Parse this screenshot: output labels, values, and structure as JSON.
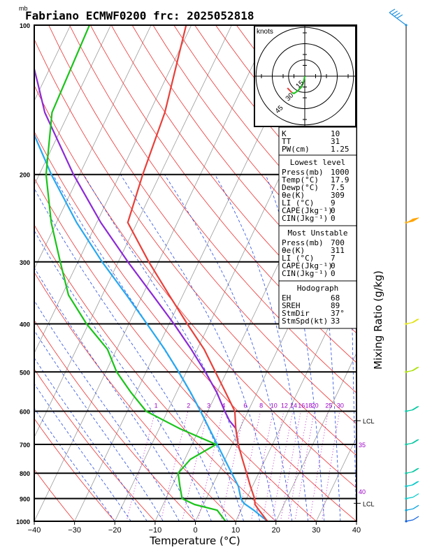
{
  "chart_data": {
    "type": "line",
    "title": "Fabriano ECMWF0200 frc: 2025052818",
    "pressure_unit_label": "mb",
    "xlabel": "Temperature (°C)",
    "right_label": "Mixing Ratio (g/kg)",
    "x_ticks": [
      "−40",
      "−30",
      "−20",
      "−10",
      "0",
      "10",
      "20",
      "30",
      "40"
    ],
    "x_tick_values": [
      -40,
      -30,
      -20,
      -10,
      0,
      10,
      20,
      30,
      40
    ],
    "p_ticks": [
      "100",
      "200",
      "300",
      "400",
      "500",
      "600",
      "700",
      "800",
      "900",
      "1000"
    ],
    "p_tick_values": [
      100,
      200,
      300,
      400,
      500,
      600,
      700,
      800,
      900,
      1000
    ],
    "xlim": [
      -40,
      40
    ],
    "plim": [
      1000,
      100
    ],
    "mixing_ratio_labels": [
      "1",
      "2",
      "3",
      "4",
      "6",
      "8",
      "10",
      "12",
      "14",
      "16",
      "18",
      "20",
      "25",
      "30"
    ],
    "mixing_ratio_values": [
      1,
      2,
      3,
      4,
      6,
      8,
      10,
      12,
      14,
      16,
      18,
      20,
      25,
      30
    ],
    "theta_e_labels": [
      "35",
      "40"
    ],
    "lcl_labels": [
      "LCL",
      "LCL"
    ],
    "lcl_pressures": [
      627,
      920
    ],
    "series": [
      {
        "name": "Temperature",
        "color": "#e8403a",
        "p": [
          1000,
          950,
          925,
          900,
          850,
          800,
          750,
          700,
          650,
          600,
          550,
          500,
          450,
          400,
          350,
          300,
          250,
          200,
          150,
          100
        ],
        "t": [
          17.9,
          14.5,
          12.8,
          12.0,
          9.5,
          7.0,
          4.3,
          1.5,
          -1.0,
          -3.3,
          -7.8,
          -12.8,
          -18.3,
          -25.5,
          -33.4,
          -42.4,
          -52.3,
          -54.3,
          -56.2,
          -61.3
        ]
      },
      {
        "name": "Dewpoint",
        "color": "#18c418",
        "p": [
          1000,
          950,
          925,
          900,
          850,
          800,
          750,
          700,
          650,
          600,
          550,
          500,
          450,
          400,
          350,
          300,
          250,
          200,
          150,
          100
        ],
        "t": [
          7.5,
          4.1,
          -2.2,
          -6.0,
          -8.0,
          -10.0,
          -8.6,
          -4.0,
          -15.0,
          -25.3,
          -31.3,
          -37.3,
          -42.3,
          -50.5,
          -58.4,
          -64.4,
          -71.3,
          -78.3,
          -84.2,
          -85.3
        ]
      },
      {
        "name": "Surface parcel",
        "color": "#27a8f0",
        "p": [
          1000,
          950,
          920,
          900,
          850,
          800,
          750,
          700,
          650,
          600,
          550,
          500,
          450,
          400,
          350,
          300,
          250,
          200,
          150,
          130,
          110
        ],
        "t": [
          17.9,
          13.2,
          9.9,
          8.6,
          6.5,
          3.3,
          -0.1,
          -3.7,
          -7.6,
          -11.8,
          -16.5,
          -21.9,
          -28.1,
          -35.5,
          -44.0,
          -54.0,
          -65.0,
          -77.0,
          -91.0,
          -97.0,
          -103.0
        ]
      },
      {
        "name": "Most unstable parcel",
        "color": "#8c2ad6",
        "p": [
          700,
          650,
          627,
          600,
          550,
          500,
          450,
          400,
          350,
          300,
          250,
          200,
          150,
          130,
          110
        ],
        "t": [
          1.5,
          -1.0,
          -3.5,
          -5.8,
          -10.0,
          -15.3,
          -21.5,
          -28.8,
          -37.5,
          -47.6,
          -59.0,
          -71.5,
          -86.0,
          -91.5,
          -98.0
        ]
      }
    ],
    "hodograph": {
      "label": "knots",
      "ring_labels": [
        "15",
        "30",
        "45"
      ],
      "ring_values": [
        15,
        30,
        45
      ],
      "u": [
        0,
        -1,
        -3,
        -7,
        -10,
        -12,
        -14,
        -16
      ],
      "v": [
        0,
        -5,
        -10,
        -14,
        -16,
        -15,
        -13,
        -11
      ],
      "path_colors": [
        "#18c418",
        "#e8403a"
      ]
    },
    "indices": {
      "general": [
        {
          "label": "K",
          "value": "10"
        },
        {
          "label": "TT",
          "value": "31"
        },
        {
          "label": "PW(cm)",
          "value": "1.25"
        }
      ],
      "lowest_level": {
        "heading": "Lowest level",
        "rows": [
          {
            "label": "Press(mb)",
            "value": "1000"
          },
          {
            "label": "Temp(°C)",
            "value": "17.9"
          },
          {
            "label": "Dewp(°C)",
            "value": "7.5"
          },
          {
            "label": "θe(K)",
            "value": "309"
          },
          {
            "label": "LI (°C)",
            "value": "9"
          },
          {
            "label": "CAPE(Jkg⁻¹)",
            "value": "0"
          },
          {
            "label": "CIN(Jkg⁻¹)",
            "value": "0"
          }
        ]
      },
      "most_unstable": {
        "heading": "Most Unstable",
        "rows": [
          {
            "label": "Press(mb)",
            "value": "700"
          },
          {
            "label": "θe(K)",
            "value": "311"
          },
          {
            "label": "LI (°C)",
            "value": "7"
          },
          {
            "label": "CAPE(Jkg⁻¹)",
            "value": "0"
          },
          {
            "label": "CIN(Jkg⁻¹)",
            "value": "0"
          }
        ]
      },
      "hodograph": {
        "heading": "Hodograph",
        "rows": [
          {
            "label": "EH",
            "value": "68"
          },
          {
            "label": "SREH",
            "value": "89"
          },
          {
            "label": "StmDir",
            "value": "37°"
          },
          {
            "label": "StmSpd(kt)",
            "value": "33"
          }
        ]
      }
    },
    "wind_barbs": [
      {
        "p": 100,
        "color": "#1e90e0",
        "kt": 35
      },
      {
        "p": 250,
        "color": "#ffa500",
        "kt": 60
      },
      {
        "p": 400,
        "color": "#e0e000",
        "kt": 15
      },
      {
        "p": 500,
        "color": "#a8e000",
        "kt": 15
      },
      {
        "p": 600,
        "color": "#00c8a0",
        "kt": 20
      },
      {
        "p": 700,
        "color": "#00c8a0",
        "kt": 20
      },
      {
        "p": 800,
        "color": "#00c8a0",
        "kt": 20
      },
      {
        "p": 850,
        "color": "#00c8c8",
        "kt": 15
      },
      {
        "p": 900,
        "color": "#00c8c8",
        "kt": 10
      },
      {
        "p": 950,
        "color": "#00a0e0",
        "kt": 5
      },
      {
        "p": 1000,
        "color": "#1060e0",
        "kt": 5
      }
    ]
  }
}
